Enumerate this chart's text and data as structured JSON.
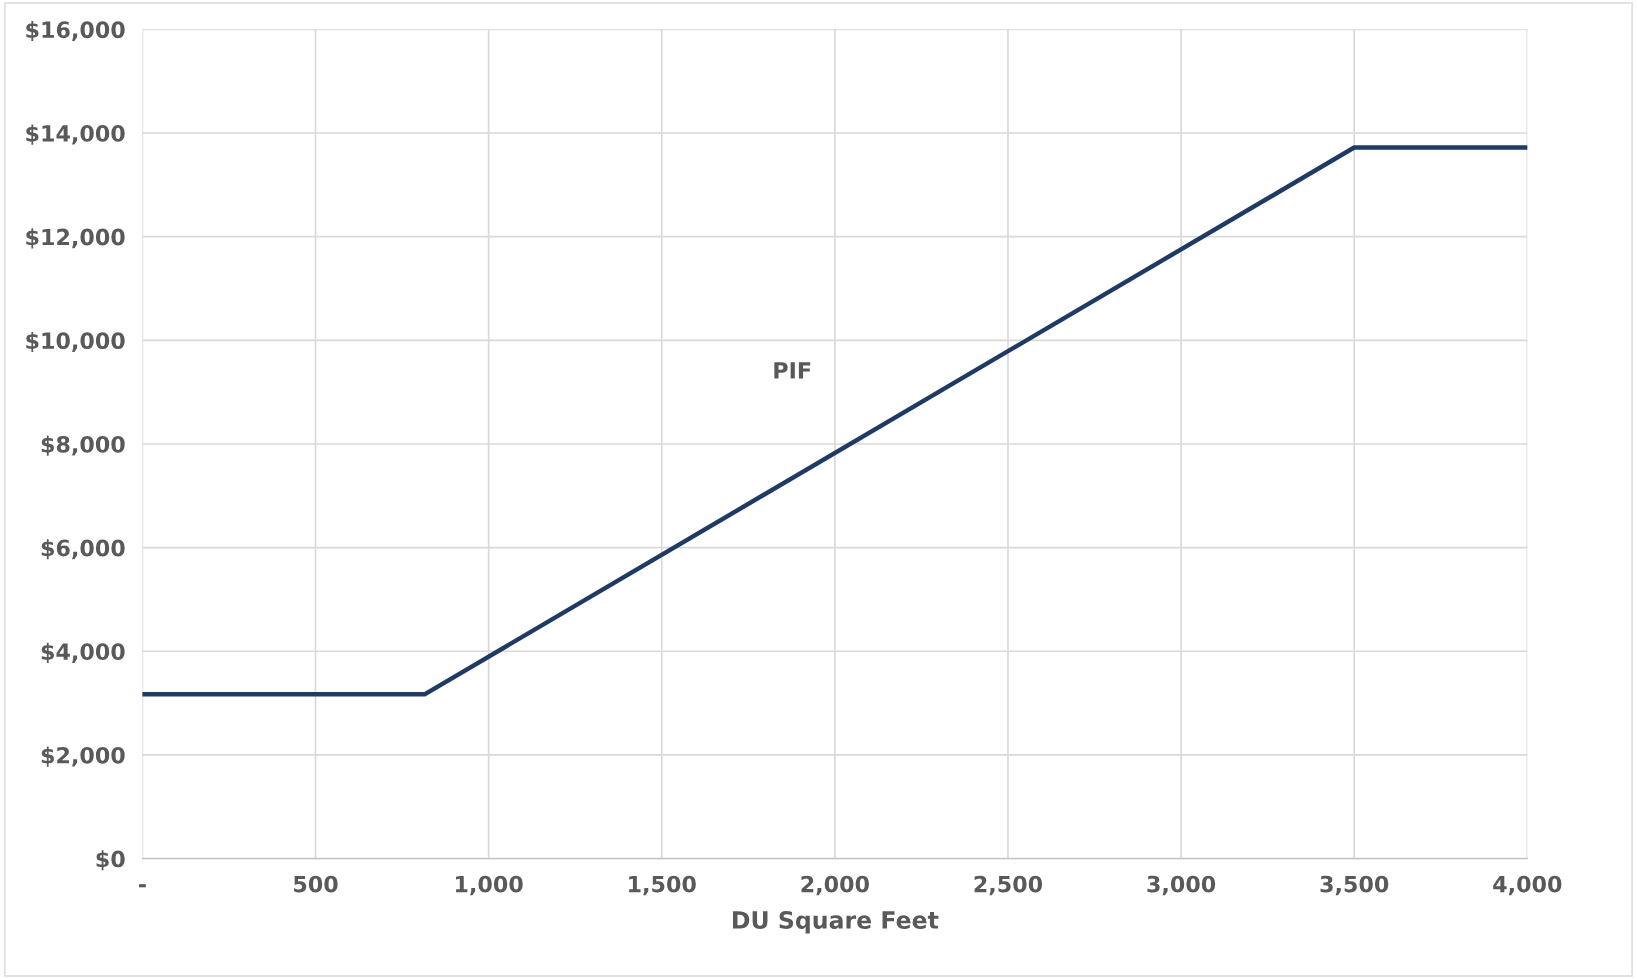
{
  "chart_data": {
    "type": "line",
    "xlabel": "DU Square Feet",
    "series": [
      {
        "name": "PIF",
        "color": "#1f3b64",
        "x": [
          0,
          815,
          3500,
          4000
        ],
        "values": [
          3170,
          3170,
          13720,
          13720
        ]
      }
    ],
    "xlim": [
      0,
      4000
    ],
    "xticks": [
      {
        "value": 0,
        "label": "-"
      },
      {
        "value": 500,
        "label": "500"
      },
      {
        "value": 1000,
        "label": "1,000"
      },
      {
        "value": 1500,
        "label": "1,500"
      },
      {
        "value": 2000,
        "label": "2,000"
      },
      {
        "value": 2500,
        "label": "2,500"
      },
      {
        "value": 3000,
        "label": "3,000"
      },
      {
        "value": 3500,
        "label": "3,500"
      },
      {
        "value": 4000,
        "label": "4,000"
      }
    ],
    "ylim": [
      0,
      16000
    ],
    "yticks": [
      {
        "value": 0,
        "label": "$0"
      },
      {
        "value": 2000,
        "label": "$2,000"
      },
      {
        "value": 4000,
        "label": "$4,000"
      },
      {
        "value": 6000,
        "label": "$6,000"
      },
      {
        "value": 8000,
        "label": "$8,000"
      },
      {
        "value": 10000,
        "label": "$10,000"
      },
      {
        "value": 12000,
        "label": "$12,000"
      },
      {
        "value": 14000,
        "label": "$14,000"
      },
      {
        "value": 16000,
        "label": "$16,000"
      }
    ],
    "grid": true,
    "legend": false,
    "marker": "none",
    "line_style": "solid"
  }
}
